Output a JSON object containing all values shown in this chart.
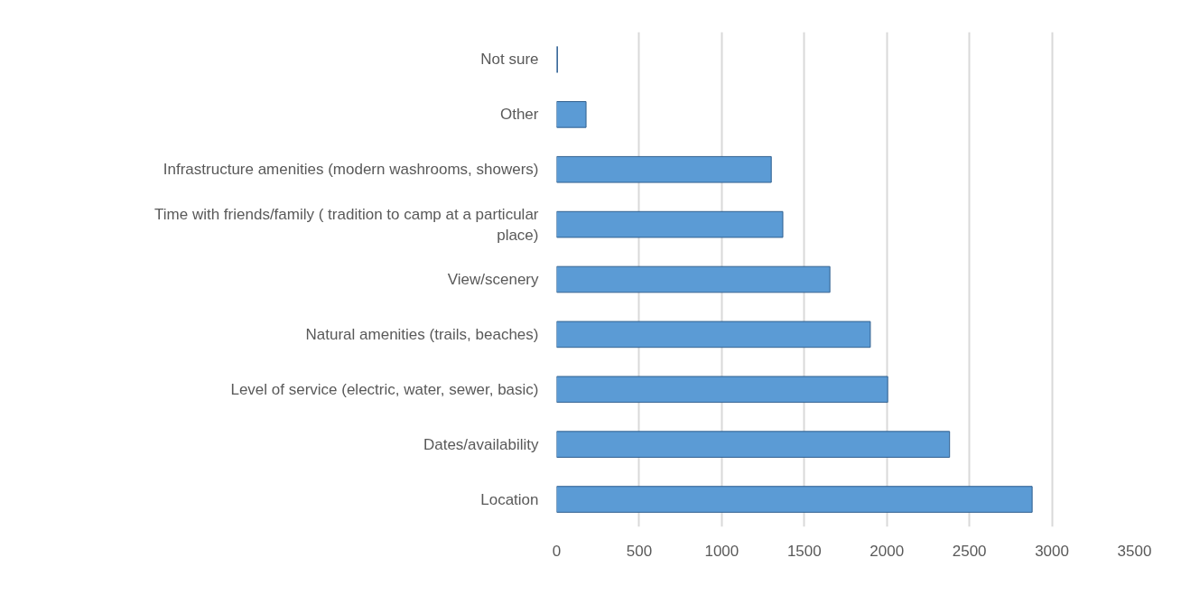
{
  "chart_data": {
    "type": "bar",
    "orientation": "horizontal",
    "categories": [
      "Not sure",
      "Other",
      "Infrastructure amenities (modern washrooms, showers)",
      "Time with friends/family ( tradition to camp at a particular place)",
      "View/scenery",
      "Natural amenities (trails, beaches)",
      "Level of service (electric, water, sewer, basic)",
      "Dates/availability",
      "Location"
    ],
    "values": [
      5,
      178,
      1300,
      1370,
      1655,
      1900,
      2005,
      2380,
      2880
    ],
    "color": "#5b9bd5",
    "xlim": [
      0,
      3500
    ],
    "xticks": [
      0,
      500,
      1000,
      1500,
      2000,
      2500,
      3000,
      3500
    ],
    "grid": "x"
  }
}
